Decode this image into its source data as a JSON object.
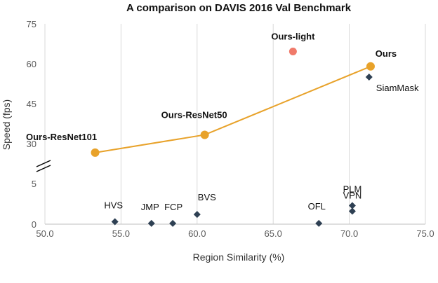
{
  "chart_data": {
    "type": "scatter",
    "title": "A comparison on DAVIS 2016 Val Benchmark",
    "xlabel": "Region Similarity (%)",
    "ylabel": "Speed (fps)",
    "xlim": [
      50.0,
      75.0
    ],
    "x_ticks": [
      "50.0",
      "55.0",
      "60.0",
      "65.0",
      "70.0",
      "75.0"
    ],
    "x_tick_values": [
      50,
      55,
      60,
      65,
      70,
      75
    ],
    "y_ticks": [
      "0",
      "5",
      "30",
      "45",
      "60",
      "75"
    ],
    "y_tick_values": [
      0,
      5,
      30,
      45,
      60,
      75
    ],
    "y_axis_break": true,
    "grid": "vertical",
    "colors": {
      "line": "#e8a22a",
      "ours_light": "#f07a6a",
      "others": "#2e4053"
    },
    "series": [
      {
        "name": "",
        "style": "line-with-markers",
        "points": [
          {
            "label": "Ours-ResNet101",
            "x": 53.3,
            "y": 26.6
          },
          {
            "label": "Ours-ResNet50",
            "x": 60.5,
            "y": 33.3
          },
          {
            "label": "Ours",
            "x": 71.4,
            "y": 59.0
          }
        ]
      },
      {
        "name": "",
        "style": "circle",
        "points": [
          {
            "label": "Ours-light",
            "x": 66.3,
            "y": 64.6
          }
        ]
      },
      {
        "name": "",
        "style": "diamond",
        "points": [
          {
            "label": "SiamMask",
            "x": 71.3,
            "y": 55.0
          },
          {
            "label": "PLM",
            "x": 70.2,
            "y": 6.7
          },
          {
            "label": "VPN",
            "x": 70.2,
            "y": 1.6
          },
          {
            "label": "OFL",
            "x": 68.0,
            "y": 0.1
          },
          {
            "label": "BVS",
            "x": 60.0,
            "y": 1.2
          },
          {
            "label": "HVS",
            "x": 54.6,
            "y": 0.3
          },
          {
            "label": "JMP",
            "x": 57.0,
            "y": 0.1
          },
          {
            "label": "FCP",
            "x": 58.4,
            "y": 0.1
          }
        ]
      }
    ]
  }
}
